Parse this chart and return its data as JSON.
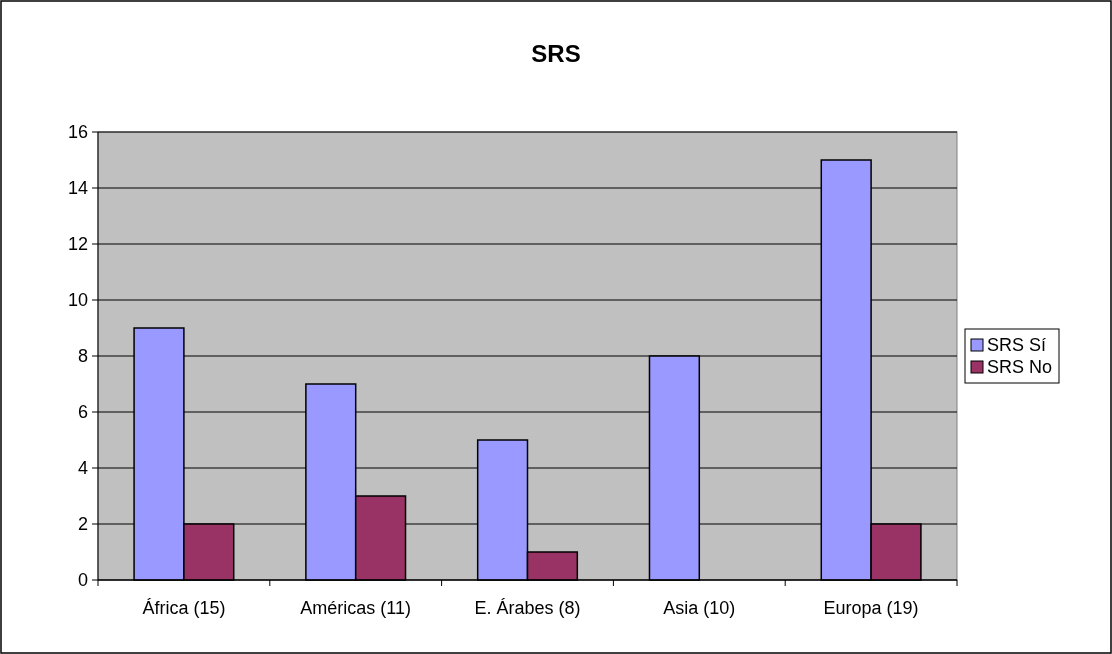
{
  "chart_data": {
    "type": "bar",
    "title": "SRS",
    "categories": [
      "África (15)",
      "Américas (11)",
      "E. Árabes (8)",
      "Asia (10)",
      "Europa (19)"
    ],
    "series": [
      {
        "name": "SRS Sí",
        "color": "#9999ff",
        "values": [
          9,
          7,
          5,
          8,
          15
        ]
      },
      {
        "name": "SRS No",
        "color": "#993366",
        "values": [
          2,
          3,
          1,
          0,
          2
        ]
      }
    ],
    "ylim": [
      0,
      16
    ],
    "yticks": [
      0,
      2,
      4,
      6,
      8,
      10,
      12,
      14,
      16
    ],
    "grid": "y",
    "legend": "right"
  }
}
